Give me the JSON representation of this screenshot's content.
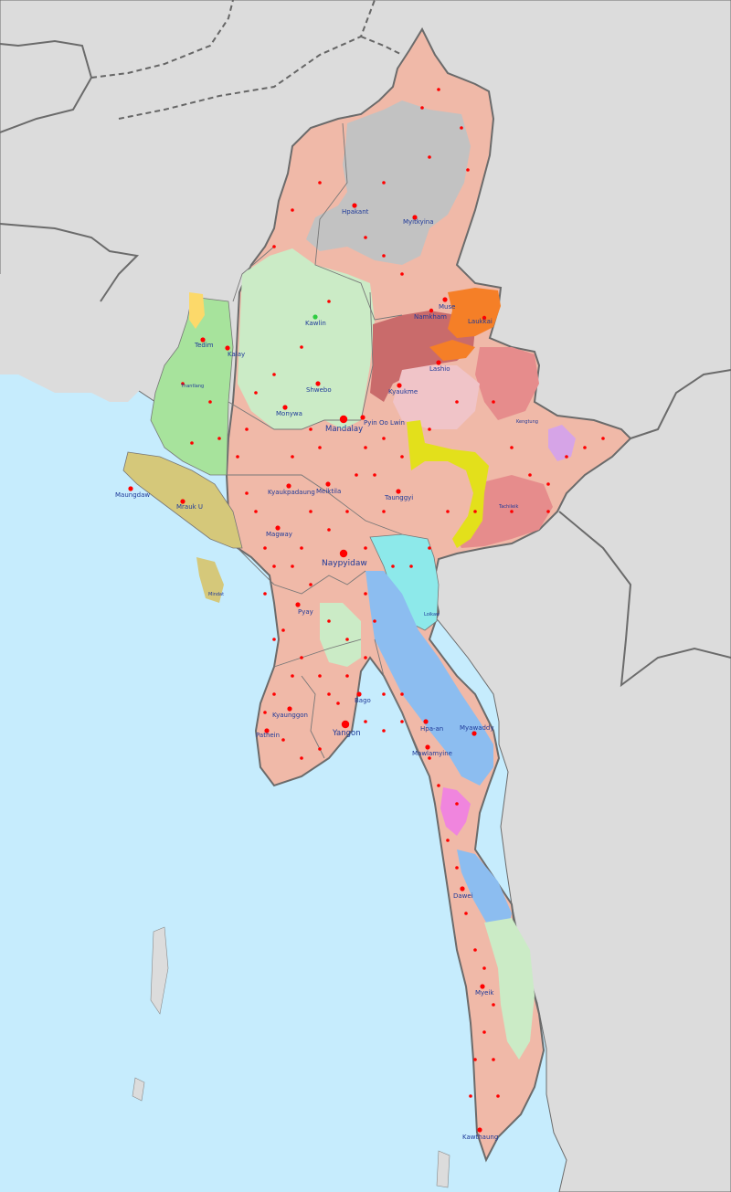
{
  "colors": {
    "sea": "#c6ecfd",
    "land_neighbors": "#dcdcdc",
    "myanmar_base": "#f0b9a8",
    "kachin_north": "#c2c2c2",
    "shan_wa": "#c96b6b",
    "kokang": "#f57f27",
    "chin": "#a7e39c",
    "rakhine": "#d5c87a",
    "naga_green": "#cbebc6",
    "shan_pink": "#e68c8c",
    "pao_yellow": "#e3e01b",
    "kayah_cyan": "#8de9ea",
    "karen_blue": "#8cbdf0",
    "mon_magenta": "#f085de",
    "lahu_lilac": "#d6a4e7",
    "city_dot": "#ff0000",
    "label": "#1f3a99",
    "intl_border": "#6b6b6b",
    "disputed_border": "#666666",
    "internal_border": "#777777"
  },
  "labels": {
    "hpakant": "Hpakant",
    "myitkyina": "Myitkyina",
    "kawlin": "Kawlin",
    "tedim": "Tedim",
    "kalay": "Kalay",
    "shwebo": "Shwebo",
    "monywa": "Monywa",
    "mandalay": "Mandalay",
    "pyin_oo_lwin": "Pyin Oo Lwin",
    "kyaukme": "Kyaukme",
    "lashio": "Lashio",
    "muse": "Muse",
    "namkham": "Namkham",
    "laukkai": "Laukkai",
    "maungdaw": "Maungdaw",
    "mrauk_u": "Mrauk U",
    "kyaukpadaung": "Kyaukpadaung",
    "meiktila": "Meiktila",
    "taunggyi": "Taunggyi",
    "magway": "Magway",
    "naypyidaw": "Naypyidaw",
    "pyay": "Pyay",
    "bago": "Bago",
    "kyaunggon": "Kyaunggon",
    "pathein": "Pathein",
    "yangon": "Yangon",
    "hpa_an": "Hpa-an",
    "myawaddy": "Myawaddy",
    "mawlamyine": "Mawlamyine",
    "dawei": "Dawei",
    "myeik": "Myeik",
    "kawthaung": "Kawthaung",
    "thantlang": "Thantlang",
    "mindat": "Mindat",
    "kengtung": "Kengtung",
    "tachileik": "Tachileik",
    "loikaw": "Loikaw"
  }
}
